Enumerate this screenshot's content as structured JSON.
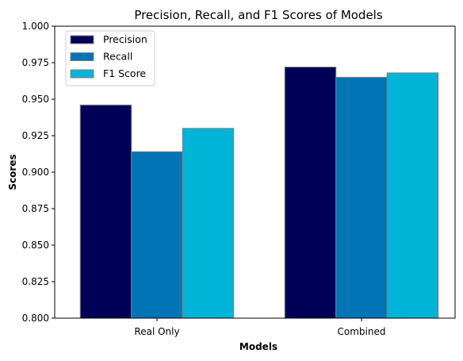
{
  "chart_data": {
    "type": "bar",
    "title": "Precision, Recall, and F1 Scores of Models",
    "xlabel": "Models",
    "ylabel": "Scores",
    "categories": [
      "Real Only",
      "Combined"
    ],
    "series": [
      {
        "name": "Precision",
        "values": [
          0.946,
          0.972
        ],
        "color": "#000057"
      },
      {
        "name": "Recall",
        "values": [
          0.914,
          0.965
        ],
        "color": "#0074b4"
      },
      {
        "name": "F1 Score",
        "values": [
          0.93,
          0.968
        ],
        "color": "#00b4d8"
      }
    ],
    "ylim": [
      0.8,
      1.0
    ],
    "yticks": [
      "0.800",
      "0.825",
      "0.850",
      "0.875",
      "0.900",
      "0.925",
      "0.950",
      "0.975",
      "1.000"
    ],
    "grid": false,
    "legend_position": "top-left"
  }
}
